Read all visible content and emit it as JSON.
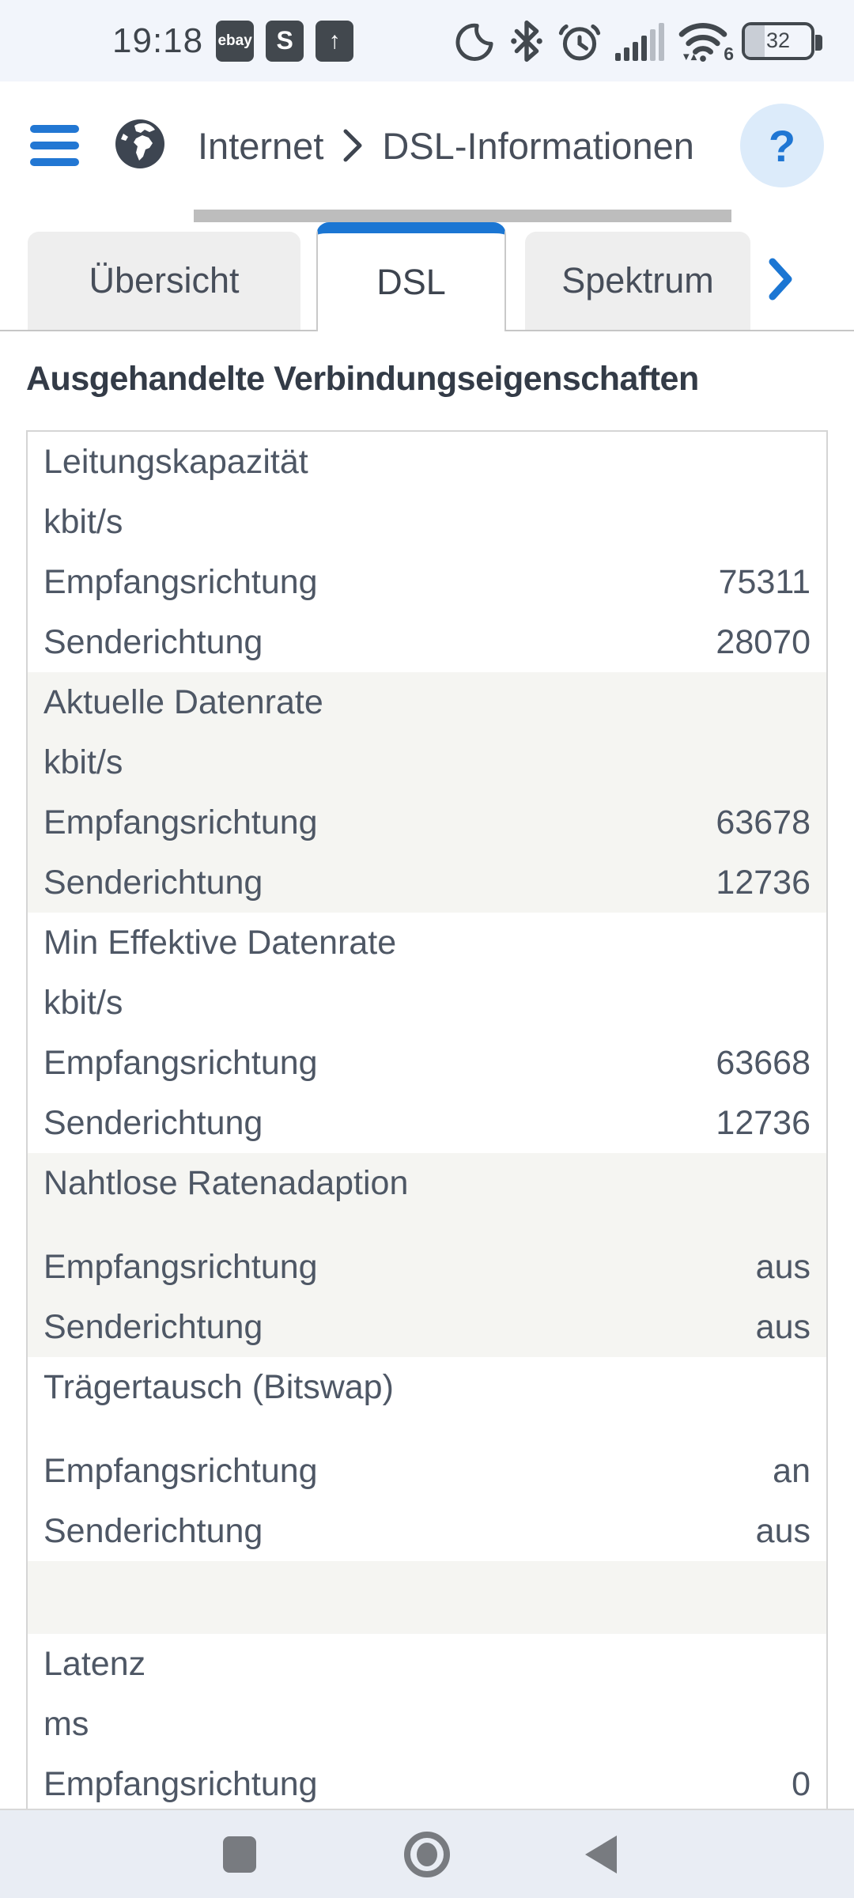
{
  "status_bar": {
    "time": "19:18",
    "badges": [
      {
        "name": "ebay-notification",
        "label": "ebay"
      },
      {
        "name": "s-notification",
        "label": "S"
      },
      {
        "name": "upload-notification",
        "label": "↑"
      }
    ],
    "right_icons": [
      "night-mode-icon",
      "bluetooth-icon",
      "alarm-icon",
      "cell-signal-icon",
      "wifi-icon"
    ],
    "wifi_standard": "6",
    "battery_percent": "32"
  },
  "header": {
    "breadcrumb": [
      "Internet",
      "DSL-Informationen"
    ],
    "help_label": "?"
  },
  "tabs": [
    {
      "label": "Übersicht",
      "active": false
    },
    {
      "label": "DSL",
      "active": true
    },
    {
      "label": "Spektrum",
      "active": false
    }
  ],
  "page": {
    "section_title": "Ausgehandelte Verbindungseigenschaften"
  },
  "table": {
    "groups": [
      {
        "title": "Leitungskapazität",
        "unit": "kbit/s",
        "shaded": false,
        "rows": [
          {
            "label": "Empfangsrichtung",
            "value": "75311"
          },
          {
            "label": "Senderichtung",
            "value": "28070"
          }
        ]
      },
      {
        "title": "Aktuelle Datenrate",
        "unit": "kbit/s",
        "shaded": true,
        "rows": [
          {
            "label": "Empfangsrichtung",
            "value": "63678"
          },
          {
            "label": "Senderichtung",
            "value": "12736"
          }
        ]
      },
      {
        "title": "Min Effektive Datenrate",
        "unit": "kbit/s",
        "shaded": false,
        "rows": [
          {
            "label": "Empfangsrichtung",
            "value": "63668"
          },
          {
            "label": "Senderichtung",
            "value": "12736"
          }
        ]
      },
      {
        "title": "Nahtlose Ratenadaption",
        "unit": "",
        "shaded": true,
        "rows": [
          {
            "label": "Empfangsrichtung",
            "value": "aus"
          },
          {
            "label": "Senderichtung",
            "value": "aus"
          }
        ]
      },
      {
        "title": "Trägertausch (Bitswap)",
        "unit": "",
        "shaded": false,
        "rows": [
          {
            "label": "Empfangsrichtung",
            "value": "an"
          },
          {
            "label": "Senderichtung",
            "value": "aus"
          }
        ]
      },
      {
        "spacer": true,
        "shaded": true
      },
      {
        "title": "Latenz",
        "unit": "ms",
        "shaded": false,
        "rows": [
          {
            "label": "Empfangsrichtung",
            "value": "0"
          }
        ]
      }
    ]
  },
  "colors": {
    "accent_blue": "#1b76d3",
    "status_bar_bg": "#f2f5fb",
    "shaded_row_bg": "#f5f5f2",
    "table_border": "#d5d5d5",
    "nav_bar_bg": "#e9edf4",
    "text": "#4e5765"
  }
}
